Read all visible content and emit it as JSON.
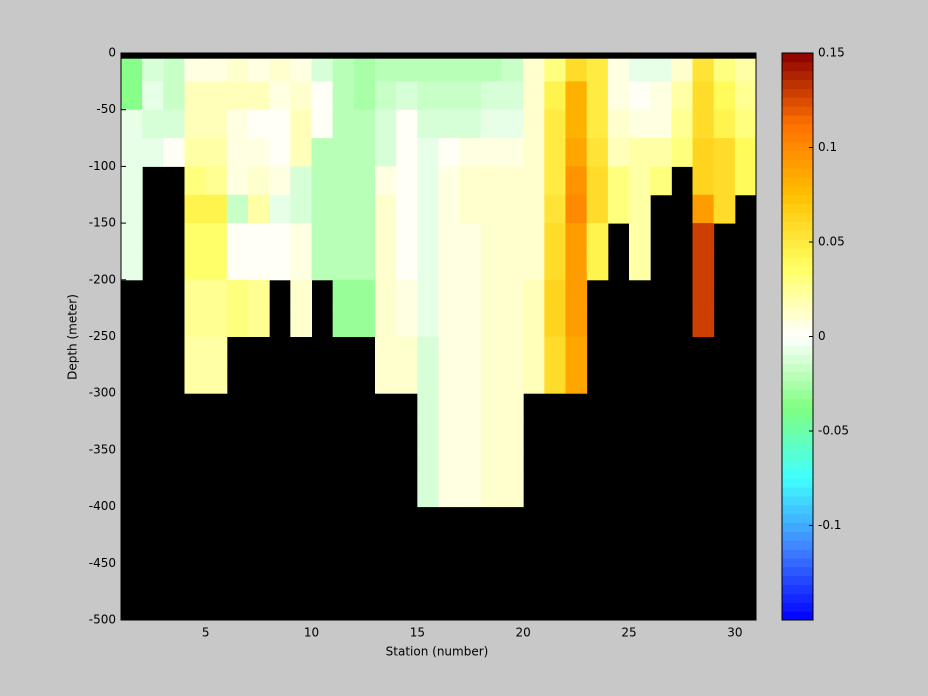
{
  "chart_data": {
    "type": "heatmap",
    "xlabel": "Station (number)",
    "ylabel": "Depth (meter)",
    "x": [
      1,
      2,
      3,
      4,
      5,
      6,
      7,
      8,
      9,
      10,
      11,
      12,
      13,
      14,
      15,
      16,
      17,
      18,
      19,
      20,
      21,
      22,
      23,
      24,
      25,
      26,
      27,
      28,
      29,
      30
    ],
    "depth_edges": [
      -5,
      -25,
      -50,
      -75,
      -100,
      -125,
      -150,
      -175,
      -200,
      -225,
      -250,
      -275,
      -300,
      -325,
      -350,
      -375,
      -400,
      -425,
      -450,
      -475,
      -500
    ],
    "values": [
      [
        -0.035,
        -0.035,
        -0.005,
        -0.005,
        -0.005,
        -0.005,
        -0.005,
        -0.005,
        null,
        null,
        null,
        null,
        null,
        null,
        null,
        null,
        null,
        null,
        null,
        null
      ],
      [
        -0.01,
        -0.005,
        -0.01,
        -0.005,
        null,
        null,
        null,
        null,
        null,
        null,
        null,
        null,
        null,
        null,
        null,
        null,
        null,
        null,
        null,
        null
      ],
      [
        -0.015,
        -0.015,
        -0.01,
        0,
        null,
        null,
        null,
        null,
        null,
        null,
        null,
        null,
        null,
        null,
        null,
        null,
        null,
        null,
        null,
        null
      ],
      [
        0.005,
        0.015,
        0.015,
        0.02,
        0.03,
        0.045,
        0.035,
        0.035,
        0.025,
        0.025,
        0.02,
        0.02,
        null,
        null,
        null,
        null,
        null,
        null,
        null,
        null
      ],
      [
        0.005,
        0.015,
        0.015,
        0.02,
        0.025,
        0.045,
        0.035,
        0.035,
        0.025,
        0.025,
        0.02,
        0.02,
        null,
        null,
        null,
        null,
        null,
        null,
        null,
        null
      ],
      [
        0.01,
        0.015,
        0.005,
        0.005,
        0.005,
        -0.015,
        0,
        0,
        0.03,
        0.03,
        null,
        null,
        null,
        null,
        null,
        null,
        null,
        null,
        null,
        null
      ],
      [
        0.005,
        0.015,
        0,
        0.005,
        0.01,
        0.02,
        0,
        0,
        0.025,
        0.025,
        null,
        null,
        null,
        null,
        null,
        null,
        null,
        null,
        null,
        null
      ],
      [
        0.01,
        0.005,
        0,
        0,
        0.005,
        -0.005,
        0,
        0,
        null,
        null,
        null,
        null,
        null,
        null,
        null,
        null,
        null,
        null,
        null,
        null
      ],
      [
        0.005,
        0.01,
        0.015,
        0.015,
        -0.01,
        -0.01,
        0.005,
        0.005,
        0.01,
        0.01,
        null,
        null,
        null,
        null,
        null,
        null,
        null,
        null,
        null,
        null
      ],
      [
        -0.01,
        0,
        0,
        -0.02,
        -0.02,
        -0.02,
        -0.02,
        -0.02,
        null,
        null,
        null,
        null,
        null,
        null,
        null,
        null,
        null,
        null,
        null,
        null
      ],
      [
        -0.02,
        -0.02,
        -0.02,
        -0.02,
        -0.02,
        -0.02,
        -0.02,
        -0.02,
        -0.03,
        -0.03,
        null,
        null,
        null,
        null,
        null,
        null,
        null,
        null,
        null,
        null
      ],
      [
        -0.025,
        -0.025,
        -0.02,
        -0.02,
        -0.02,
        -0.02,
        -0.02,
        -0.02,
        -0.03,
        -0.03,
        null,
        null,
        null,
        null,
        null,
        null,
        null,
        null,
        null,
        null
      ],
      [
        -0.02,
        -0.015,
        -0.01,
        -0.01,
        0.005,
        0.01,
        0.01,
        0.01,
        0.01,
        0.01,
        0.01,
        0.01,
        null,
        null,
        null,
        null,
        null,
        null,
        null,
        null
      ],
      [
        -0.02,
        -0.01,
        0,
        0,
        0,
        0,
        0,
        0,
        0.005,
        0.005,
        0.01,
        0.01,
        null,
        null,
        null,
        null,
        null,
        null,
        null,
        null
      ],
      [
        -0.02,
        -0.015,
        -0.01,
        -0.005,
        -0.005,
        -0.005,
        -0.005,
        -0.005,
        -0.005,
        -0.005,
        -0.01,
        -0.01,
        -0.01,
        -0.01,
        -0.01,
        -0.01,
        null,
        null,
        null,
        null
      ],
      [
        -0.02,
        -0.015,
        -0.01,
        0,
        0.005,
        0.005,
        0.005,
        0.005,
        0.005,
        0.005,
        0.005,
        0.005,
        0.005,
        0.005,
        0.005,
        0.005,
        null,
        null,
        null,
        null
      ],
      [
        -0.02,
        -0.015,
        -0.01,
        0.005,
        0.01,
        0.01,
        0.005,
        0.005,
        0.005,
        0.005,
        0.005,
        0.005,
        0.005,
        0.005,
        0.005,
        0.005,
        null,
        null,
        null,
        null
      ],
      [
        -0.02,
        -0.01,
        -0.005,
        0.005,
        0.01,
        0.01,
        0.01,
        0.01,
        0.01,
        0.01,
        0.01,
        0.01,
        0.01,
        0.01,
        0.01,
        0.01,
        null,
        null,
        null,
        null
      ],
      [
        -0.015,
        -0.01,
        -0.005,
        0.005,
        0.01,
        0.01,
        0.01,
        0.01,
        0.01,
        0.01,
        0.01,
        0.01,
        0.01,
        0.01,
        0.01,
        0.01,
        null,
        null,
        null,
        null
      ],
      [
        0.01,
        0.01,
        0.01,
        0.01,
        0.01,
        0.01,
        0.01,
        0.01,
        0.015,
        0.015,
        0.015,
        0.015,
        null,
        null,
        null,
        null,
        null,
        null,
        null,
        null
      ],
      [
        0.03,
        0.045,
        0.05,
        0.05,
        0.05,
        0.055,
        0.06,
        0.06,
        0.065,
        0.065,
        0.06,
        0.06,
        null,
        null,
        null,
        null,
        null,
        null,
        null,
        null
      ],
      [
        0.06,
        0.08,
        0.08,
        0.085,
        0.095,
        0.1,
        0.09,
        0.09,
        0.09,
        0.09,
        0.085,
        0.085,
        null,
        null,
        null,
        null,
        null,
        null,
        null,
        null
      ],
      [
        0.05,
        0.05,
        0.05,
        0.055,
        0.06,
        0.06,
        0.045,
        0.045,
        null,
        null,
        null,
        null,
        null,
        null,
        null,
        null,
        null,
        null,
        null,
        null
      ],
      [
        0.005,
        0.005,
        0.01,
        0.015,
        0.03,
        0.03,
        null,
        null,
        null,
        null,
        null,
        null,
        null,
        null,
        null,
        null,
        null,
        null,
        null,
        null
      ],
      [
        -0.005,
        0,
        0.005,
        0.02,
        0.02,
        0.02,
        0.02,
        0.02,
        null,
        null,
        null,
        null,
        null,
        null,
        null,
        null,
        null,
        null,
        null,
        null
      ],
      [
        -0.005,
        0.005,
        0.005,
        0.02,
        0.03,
        null,
        null,
        null,
        null,
        null,
        null,
        null,
        null,
        null,
        null,
        null,
        null,
        null,
        null,
        null
      ],
      [
        0.01,
        0.02,
        0.025,
        0.03,
        null,
        null,
        null,
        null,
        null,
        null,
        null,
        null,
        null,
        null,
        null,
        null,
        null,
        null,
        null,
        null
      ],
      [
        0.055,
        0.06,
        0.06,
        0.065,
        0.065,
        0.09,
        0.13,
        0.13,
        0.13,
        0.13,
        null,
        null,
        null,
        null,
        null,
        null,
        null,
        null,
        null,
        null
      ],
      [
        0.03,
        0.04,
        0.045,
        0.06,
        0.06,
        0.06,
        null,
        null,
        null,
        null,
        null,
        null,
        null,
        null,
        null,
        null,
        null,
        null,
        null,
        null
      ],
      [
        0.02,
        0.025,
        0.03,
        0.04,
        0.04,
        null,
        null,
        null,
        null,
        null,
        null,
        null,
        null,
        null,
        null,
        null,
        null,
        null,
        null,
        null
      ]
    ],
    "xlim": [
      1,
      31
    ],
    "xticks": [
      5,
      10,
      15,
      20,
      25,
      30
    ],
    "ylim": [
      -500,
      0
    ],
    "yticks": [
      0,
      -50,
      -100,
      -150,
      -200,
      -250,
      -300,
      -350,
      -400,
      -450,
      -500
    ],
    "clim": [
      -0.15,
      0.15
    ],
    "cticks": [
      -0.1,
      -0.05,
      0,
      0.05,
      0.1,
      0.15
    ],
    "colormap": [
      "#0000ff",
      "#4080ff",
      "#40ffff",
      "#80ff80",
      "#ffffff",
      "#ffff60",
      "#ffc000",
      "#ff7000",
      "#8b0000"
    ],
    "colormap_levels": 64,
    "missing_color": "#000000"
  }
}
